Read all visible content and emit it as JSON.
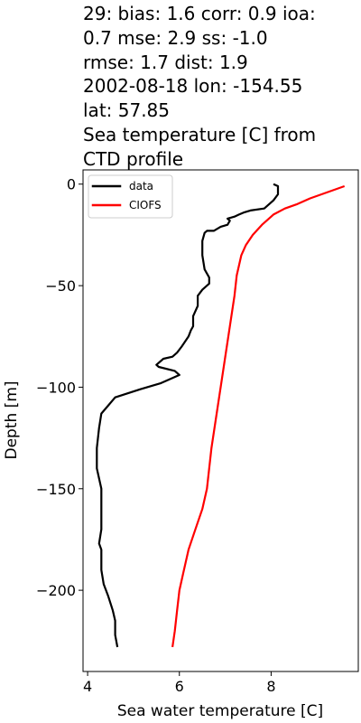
{
  "title_lines": [
    "29: bias: 1.6  corr: 0.9  ioa:",
    "0.7  mse: 2.9  ss: -1.0",
    "rmse: 1.7  dist: 1.9",
    "2002-08-18 lon: -154.55",
    "lat: 57.85",
    "Sea temperature [C] from",
    "CTD profile"
  ],
  "chart_data": {
    "type": "line",
    "xlabel": "Sea water temperature [C]",
    "ylabel": "Depth [m]",
    "xlim": [
      3.9,
      9.9
    ],
    "ylim": [
      -240,
      7
    ],
    "xticks": [
      4,
      6,
      8
    ],
    "yticks": [
      0,
      -50,
      -100,
      -150,
      -200
    ],
    "ytick_labels": [
      "0",
      "−50",
      "−100",
      "−150",
      "−200"
    ],
    "grid": false,
    "legend_position": "upper-left",
    "series": [
      {
        "name": "data",
        "color": "#000000",
        "points": [
          [
            8.05,
            0
          ],
          [
            8.15,
            -1
          ],
          [
            8.15,
            -5
          ],
          [
            8.05,
            -8
          ],
          [
            7.95,
            -10
          ],
          [
            7.85,
            -12
          ],
          [
            7.55,
            -13
          ],
          [
            7.4,
            -14
          ],
          [
            7.3,
            -15
          ],
          [
            7.2,
            -16
          ],
          [
            7.05,
            -17
          ],
          [
            7.1,
            -18
          ],
          [
            7.05,
            -20
          ],
          [
            6.9,
            -21
          ],
          [
            6.75,
            -23
          ],
          [
            6.6,
            -23
          ],
          [
            6.55,
            -24
          ],
          [
            6.5,
            -28
          ],
          [
            6.5,
            -35
          ],
          [
            6.55,
            -42
          ],
          [
            6.65,
            -46
          ],
          [
            6.65,
            -49
          ],
          [
            6.5,
            -52
          ],
          [
            6.4,
            -55
          ],
          [
            6.4,
            -60
          ],
          [
            6.3,
            -65
          ],
          [
            6.3,
            -70
          ],
          [
            6.25,
            -72
          ],
          [
            6.2,
            -75
          ],
          [
            6.05,
            -80
          ],
          [
            5.95,
            -83
          ],
          [
            5.85,
            -85
          ],
          [
            5.65,
            -86
          ],
          [
            5.5,
            -89
          ],
          [
            5.55,
            -90
          ],
          [
            5.9,
            -92
          ],
          [
            6.0,
            -94
          ],
          [
            5.6,
            -98
          ],
          [
            5.15,
            -101
          ],
          [
            4.6,
            -105
          ],
          [
            4.45,
            -109
          ],
          [
            4.3,
            -113
          ],
          [
            4.25,
            -120
          ],
          [
            4.2,
            -130
          ],
          [
            4.2,
            -140
          ],
          [
            4.3,
            -150
          ],
          [
            4.3,
            -160
          ],
          [
            4.3,
            -170
          ],
          [
            4.25,
            -177
          ],
          [
            4.3,
            -180
          ],
          [
            4.3,
            -190
          ],
          [
            4.35,
            -197
          ],
          [
            4.45,
            -203
          ],
          [
            4.55,
            -210
          ],
          [
            4.6,
            -215
          ],
          [
            4.6,
            -222
          ],
          [
            4.65,
            -228
          ]
        ]
      },
      {
        "name": "CIOFS",
        "color": "#ff0000",
        "points": [
          [
            9.6,
            -1
          ],
          [
            9.35,
            -3
          ],
          [
            9.1,
            -5
          ],
          [
            8.85,
            -7
          ],
          [
            8.55,
            -10
          ],
          [
            8.3,
            -12
          ],
          [
            8.05,
            -15
          ],
          [
            7.8,
            -20
          ],
          [
            7.6,
            -25
          ],
          [
            7.45,
            -30
          ],
          [
            7.35,
            -35
          ],
          [
            7.25,
            -45
          ],
          [
            7.2,
            -55
          ],
          [
            7.1,
            -70
          ],
          [
            7.0,
            -85
          ],
          [
            6.9,
            -100
          ],
          [
            6.8,
            -115
          ],
          [
            6.7,
            -130
          ],
          [
            6.65,
            -140
          ],
          [
            6.6,
            -150
          ],
          [
            6.5,
            -160
          ],
          [
            6.35,
            -170
          ],
          [
            6.2,
            -180
          ],
          [
            6.1,
            -190
          ],
          [
            6.0,
            -200
          ],
          [
            5.95,
            -210
          ],
          [
            5.9,
            -220
          ],
          [
            5.85,
            -228
          ]
        ]
      }
    ]
  }
}
